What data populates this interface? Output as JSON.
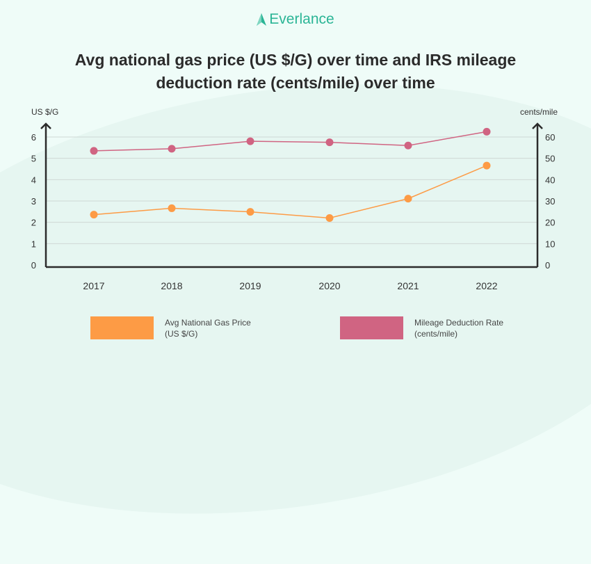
{
  "brand": {
    "name": "Everlance",
    "color": "#2bb596"
  },
  "chart_data": {
    "type": "line",
    "title": "Avg national gas price (US $/G) over time and IRS mileage deduction rate (cents/mile) over time",
    "categories": [
      "2017",
      "2018",
      "2019",
      "2020",
      "2021",
      "2022"
    ],
    "left_axis": {
      "label": "US $/G",
      "ylim": [
        0,
        6
      ],
      "ticks": [
        "0",
        "1",
        "2",
        "3",
        "4",
        "5",
        "6"
      ]
    },
    "right_axis": {
      "label": "cents/mile",
      "ylim": [
        0,
        60
      ],
      "ticks": [
        "0",
        "10",
        "20",
        "30",
        "40",
        "50",
        "60"
      ]
    },
    "grid": true,
    "series": [
      {
        "name": "Avg National Gas Price (US $/G)",
        "axis": "left",
        "color": "#fd9b45",
        "values": [
          2.36,
          2.66,
          2.49,
          2.2,
          3.11,
          4.66
        ]
      },
      {
        "name": "Mileage Deduction Rate (cents/mile)",
        "axis": "right",
        "color": "#d06482",
        "values": [
          53.5,
          54.5,
          58,
          57.5,
          56,
          62.5
        ]
      }
    ],
    "legend": {
      "placement": "bottom",
      "items": [
        {
          "line1": "Avg National Gas Price",
          "line2": "(US $/G)",
          "color": "#fd9b45"
        },
        {
          "line1": "Mileage Deduction Rate",
          "line2": "(cents/mile)",
          "color": "#d06482"
        }
      ]
    }
  }
}
